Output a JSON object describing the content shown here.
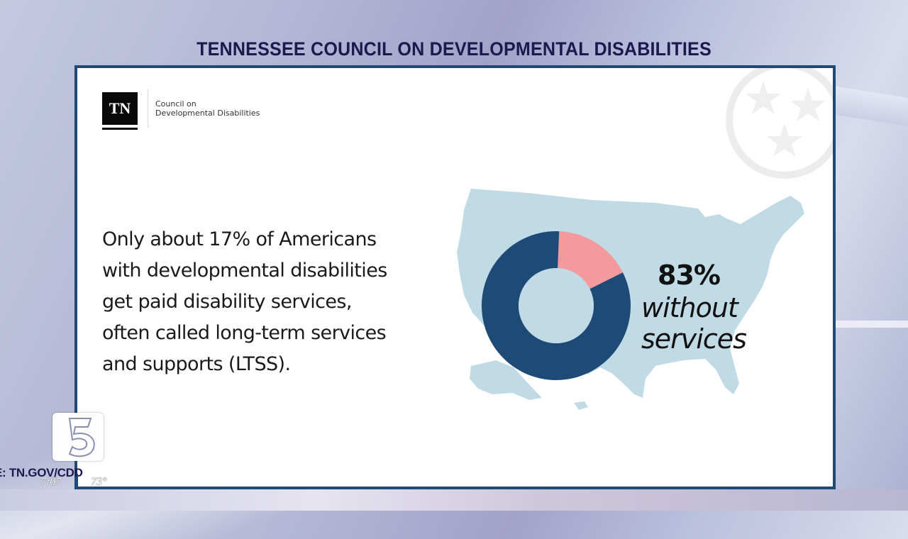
{
  "header": {
    "title": "TENNESSEE COUNCIL ON DEVELOPMENTAL DISABILITIES"
  },
  "logo": {
    "mark": "TN",
    "line1": "Council on",
    "line2": "Developmental Disabilities"
  },
  "body_text": [
    "Only about 17% of Americans",
    "with developmental disabilities",
    "get paid disability services,",
    "often called long-term services",
    "and supports (LTSS)."
  ],
  "stat": {
    "value": "83%",
    "label_line1": "without",
    "label_line2": "services"
  },
  "colors": {
    "border": "#1f4a75",
    "without_services": "#1e4a77",
    "with_services": "#f4999c",
    "map": "#c1dbe6"
  },
  "ticker": {
    "text": "E:  TN.GOV/CDD",
    "time": "7:07",
    "temperature": "73°"
  },
  "channel_logo": {
    "icon": "channel-5-logo"
  },
  "chart_data": {
    "type": "pie",
    "donut": true,
    "title": "",
    "categories": [
      "Get paid disability services (LTSS)",
      "Without services"
    ],
    "values": [
      17,
      83
    ],
    "units": "%",
    "annotations": [
      "83% without services"
    ],
    "legend": "none"
  }
}
